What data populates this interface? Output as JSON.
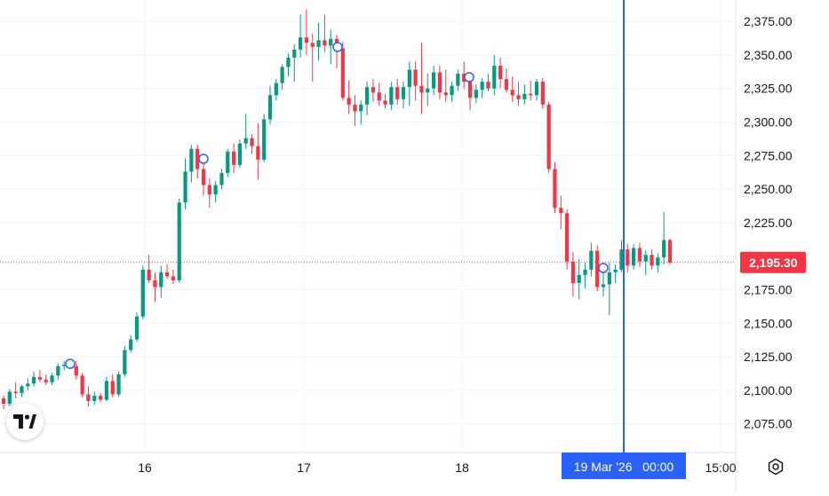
{
  "chart_data": {
    "type": "candlestick",
    "y_axis": {
      "ticks": [
        2375,
        2350,
        2325,
        2300,
        2275,
        2250,
        2225,
        2200,
        2175,
        2150,
        2125,
        2100,
        2075
      ],
      "tick_labels": [
        "2,375.00",
        "2,350.00",
        "2,325.00",
        "2,300.00",
        "2,275.00",
        "2,250.00",
        "2,225.00",
        "2,200.00",
        "2,175.00",
        "2,150.00",
        "2,125.00",
        "2,100.00",
        "2,075.00"
      ],
      "range": [
        2055,
        2388
      ],
      "position": "right"
    },
    "x_axis": {
      "tick_labels": [
        "16",
        "17",
        "18",
        "15:00"
      ],
      "crosshair_label": "19 Mar '26   00:00"
    },
    "last_price": 2195.3,
    "last_price_label": "2,195.30",
    "grid": true,
    "candles": [
      [
        2094,
        2096,
        2086,
        2090
      ],
      [
        2090,
        2101,
        2088,
        2099
      ],
      [
        2099,
        2106,
        2094,
        2098
      ],
      [
        2098,
        2104,
        2095,
        2103
      ],
      [
        2103,
        2109,
        2100,
        2105
      ],
      [
        2105,
        2114,
        2103,
        2110
      ],
      [
        2110,
        2115,
        2106,
        2108
      ],
      [
        2108,
        2112,
        2104,
        2106
      ],
      [
        2106,
        2113,
        2104,
        2111
      ],
      [
        2111,
        2120,
        2108,
        2118
      ],
      [
        2118,
        2122,
        2115,
        2119
      ],
      [
        2119,
        2121,
        2116,
        2118
      ],
      [
        2118,
        2122,
        2108,
        2111
      ],
      [
        2111,
        2113,
        2095,
        2097
      ],
      [
        2097,
        2103,
        2088,
        2092
      ],
      [
        2092,
        2099,
        2089,
        2096
      ],
      [
        2096,
        2098,
        2091,
        2093
      ],
      [
        2093,
        2110,
        2092,
        2107
      ],
      [
        2107,
        2112,
        2095,
        2097
      ],
      [
        2097,
        2114,
        2095,
        2112
      ],
      [
        2112,
        2133,
        2110,
        2130
      ],
      [
        2130,
        2141,
        2128,
        2138
      ],
      [
        2138,
        2158,
        2136,
        2155
      ],
      [
        2155,
        2193,
        2153,
        2190
      ],
      [
        2190,
        2201,
        2180,
        2182
      ],
      [
        2182,
        2188,
        2166,
        2177
      ],
      [
        2177,
        2193,
        2169,
        2188
      ],
      [
        2188,
        2194,
        2183,
        2185
      ],
      [
        2185,
        2190,
        2179,
        2182
      ],
      [
        2182,
        2243,
        2180,
        2240
      ],
      [
        2240,
        2273,
        2235,
        2263
      ],
      [
        2263,
        2283,
        2255,
        2280
      ],
      [
        2280,
        2283,
        2258,
        2265
      ],
      [
        2265,
        2270,
        2245,
        2253
      ],
      [
        2253,
        2258,
        2236,
        2246
      ],
      [
        2246,
        2256,
        2240,
        2253
      ],
      [
        2253,
        2265,
        2250,
        2262
      ],
      [
        2262,
        2280,
        2259,
        2278
      ],
      [
        2278,
        2284,
        2262,
        2268
      ],
      [
        2268,
        2287,
        2266,
        2284
      ],
      [
        2284,
        2306,
        2280,
        2288
      ],
      [
        2288,
        2291,
        2276,
        2282
      ],
      [
        2282,
        2299,
        2257,
        2272
      ],
      [
        2272,
        2306,
        2270,
        2302
      ],
      [
        2302,
        2327,
        2298,
        2320
      ],
      [
        2320,
        2332,
        2316,
        2329
      ],
      [
        2329,
        2343,
        2324,
        2341
      ],
      [
        2341,
        2351,
        2334,
        2348
      ],
      [
        2348,
        2358,
        2330,
        2354
      ],
      [
        2354,
        2380,
        2348,
        2363
      ],
      [
        2363,
        2384,
        2350,
        2359
      ],
      [
        2359,
        2366,
        2330,
        2356
      ],
      [
        2356,
        2374,
        2346,
        2361
      ],
      [
        2361,
        2380,
        2352,
        2357
      ],
      [
        2357,
        2369,
        2343,
        2362
      ],
      [
        2362,
        2365,
        2340,
        2355
      ],
      [
        2355,
        2360,
        2316,
        2318
      ],
      [
        2318,
        2331,
        2306,
        2313
      ],
      [
        2313,
        2320,
        2297,
        2308
      ],
      [
        2308,
        2316,
        2298,
        2313
      ],
      [
        2313,
        2330,
        2305,
        2326
      ],
      [
        2326,
        2332,
        2315,
        2322
      ],
      [
        2322,
        2329,
        2312,
        2316
      ],
      [
        2316,
        2321,
        2310,
        2313
      ],
      [
        2313,
        2330,
        2309,
        2326
      ],
      [
        2326,
        2332,
        2313,
        2317
      ],
      [
        2317,
        2330,
        2310,
        2326
      ],
      [
        2326,
        2345,
        2312,
        2339
      ],
      [
        2339,
        2345,
        2316,
        2327
      ],
      [
        2327,
        2359,
        2306,
        2322
      ],
      [
        2322,
        2336,
        2312,
        2325
      ],
      [
        2325,
        2342,
        2320,
        2337
      ],
      [
        2337,
        2342,
        2317,
        2322
      ],
      [
        2322,
        2339,
        2315,
        2320
      ],
      [
        2320,
        2330,
        2315,
        2327
      ],
      [
        2327,
        2339,
        2323,
        2336
      ],
      [
        2336,
        2345,
        2325,
        2330
      ],
      [
        2330,
        2337,
        2309,
        2318
      ],
      [
        2318,
        2328,
        2314,
        2324
      ],
      [
        2324,
        2333,
        2318,
        2330
      ],
      [
        2330,
        2336,
        2323,
        2325
      ],
      [
        2325,
        2350,
        2320,
        2342
      ],
      [
        2342,
        2348,
        2325,
        2332
      ],
      [
        2332,
        2340,
        2322,
        2324
      ],
      [
        2324,
        2334,
        2315,
        2320
      ],
      [
        2320,
        2330,
        2312,
        2317
      ],
      [
        2317,
        2328,
        2313,
        2321
      ],
      [
        2321,
        2331,
        2316,
        2320
      ],
      [
        2320,
        2332,
        2316,
        2330
      ],
      [
        2330,
        2333,
        2310,
        2313
      ],
      [
        2313,
        2315,
        2262,
        2265
      ],
      [
        2265,
        2270,
        2232,
        2236
      ],
      [
        2236,
        2245,
        2220,
        2232
      ],
      [
        2232,
        2235,
        2190,
        2196
      ],
      [
        2196,
        2203,
        2170,
        2180
      ],
      [
        2180,
        2198,
        2168,
        2186
      ],
      [
        2186,
        2195,
        2176,
        2190
      ],
      [
        2190,
        2210,
        2185,
        2204
      ],
      [
        2204,
        2208,
        2174,
        2177
      ],
      [
        2177,
        2195,
        2170,
        2179
      ],
      [
        2179,
        2195,
        2156,
        2188
      ],
      [
        2188,
        2194,
        2180,
        2190
      ],
      [
        2190,
        2212,
        2188,
        2205
      ],
      [
        2205,
        2209,
        2188,
        2193
      ],
      [
        2193,
        2209,
        2190,
        2206
      ],
      [
        2206,
        2210,
        2192,
        2196
      ],
      [
        2196,
        2204,
        2186,
        2201
      ],
      [
        2201,
        2205,
        2190,
        2193
      ],
      [
        2193,
        2202,
        2188,
        2199
      ],
      [
        2199,
        2233,
        2194,
        2212
      ],
      [
        2212,
        2213,
        2194,
        2195.3
      ]
    ]
  },
  "ui": {
    "up_color": "#089981",
    "down_color": "#f23645",
    "crosshair_color": "#2962ff",
    "logo_icon": "tradingview-logo-icon",
    "settings_icon": "gear-icon"
  }
}
